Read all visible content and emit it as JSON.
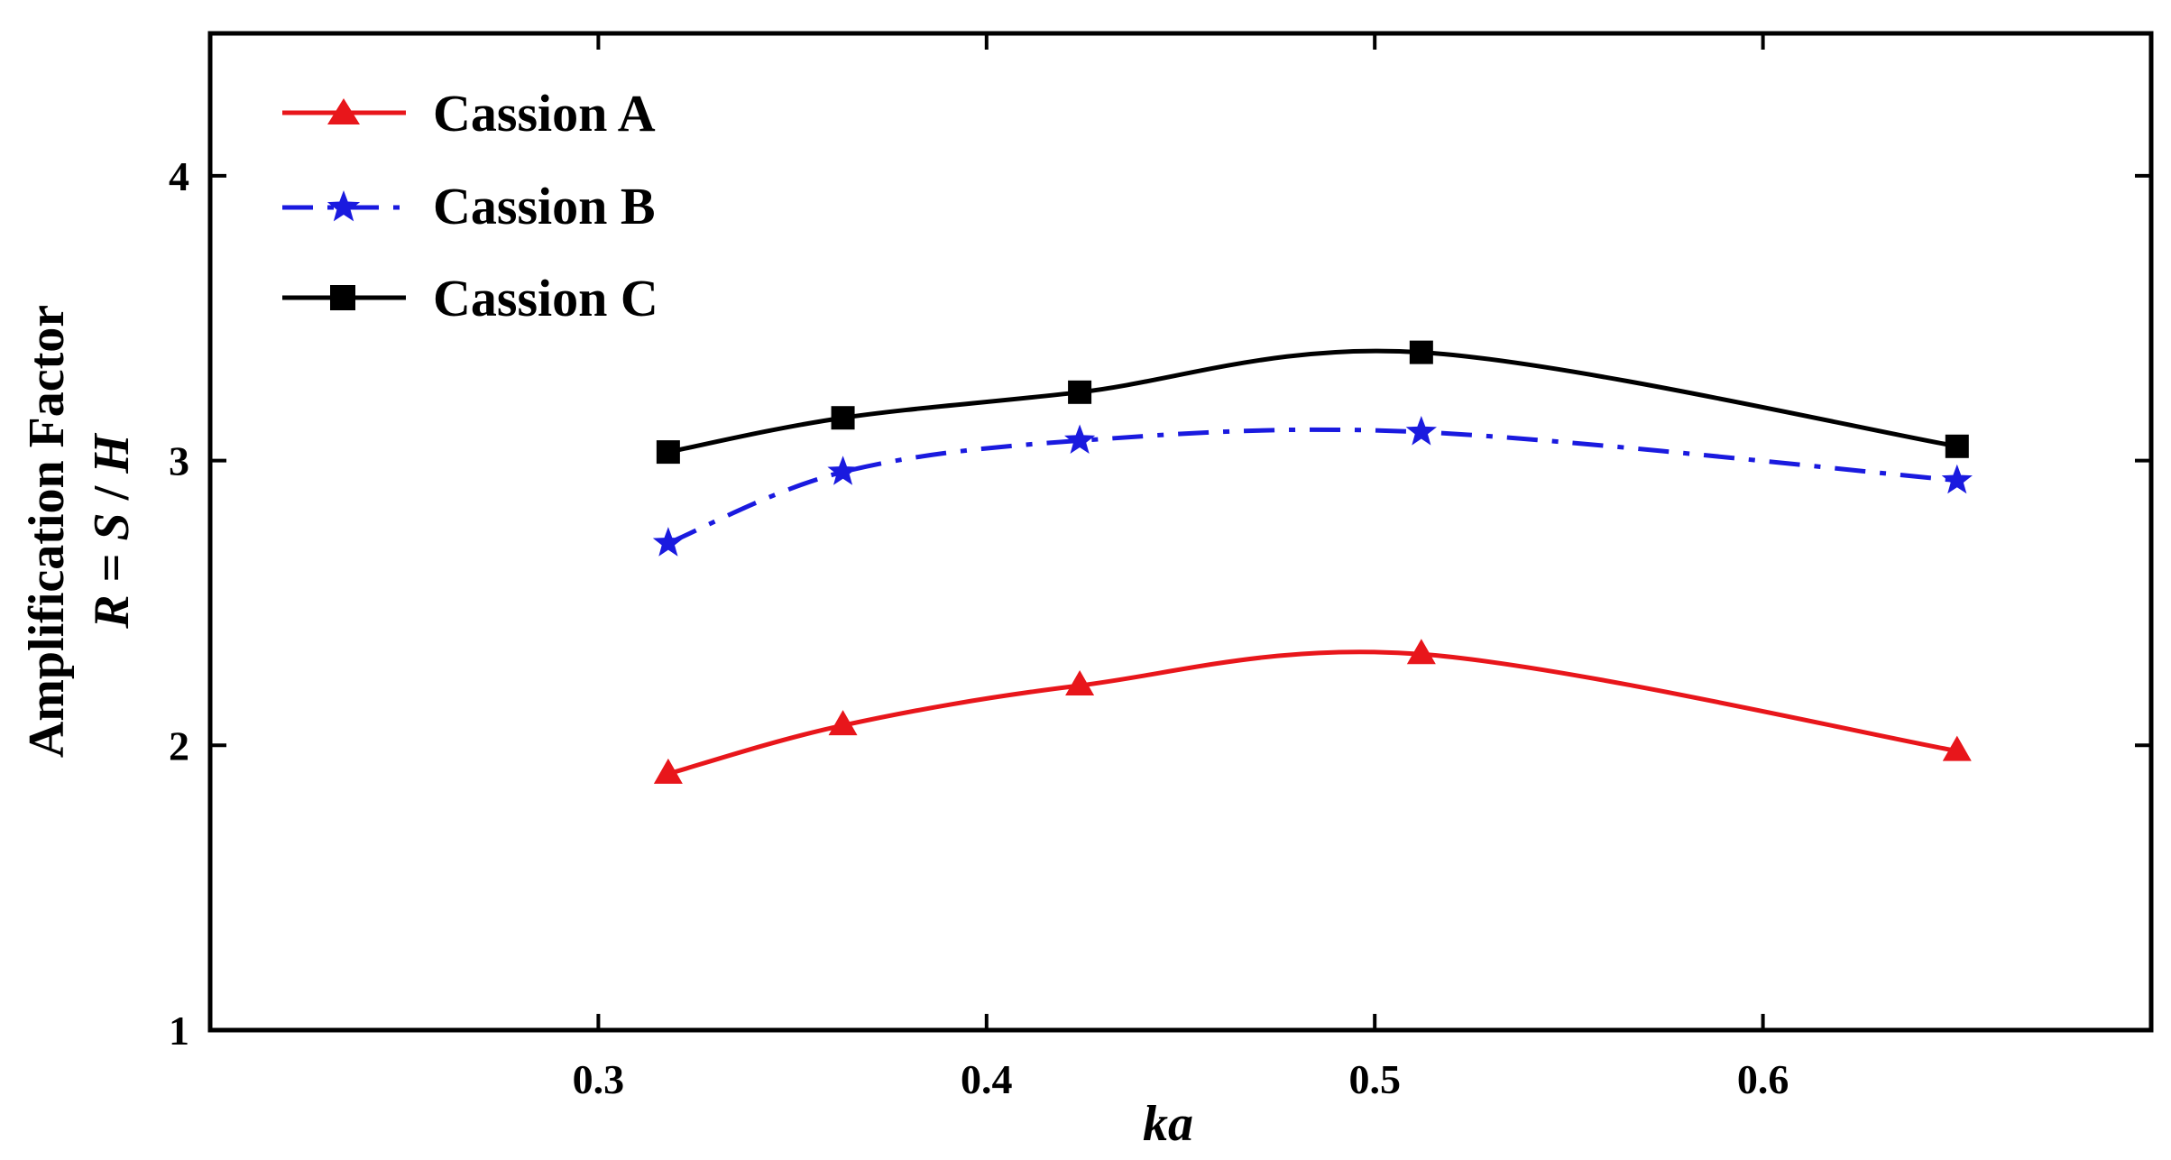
{
  "chart_data": {
    "type": "line",
    "title": "",
    "xlabel": "ka",
    "ylabel_line1": "Amplification Factor",
    "ylabel_line2": {
      "r": "R",
      "mid": " = ",
      "s": "S",
      "slash": " / ",
      "h": "H"
    },
    "xlim": [
      0.2,
      0.7
    ],
    "ylim": [
      1,
      4.5
    ],
    "xticks": [
      0.3,
      0.4,
      0.5,
      0.6
    ],
    "xtick_labels": [
      "0.3",
      "0.4",
      "0.5",
      "0.6"
    ],
    "yticks": [
      1,
      2,
      3,
      4
    ],
    "ytick_labels": [
      "1",
      "2",
      "3",
      "4"
    ],
    "legend_position": "top-left",
    "x": [
      0.318,
      0.363,
      0.424,
      0.512,
      0.65
    ],
    "series": [
      {
        "name": "Cassion A",
        "color": "#e8161b",
        "marker": "triangle",
        "dash": "solid",
        "values": [
          1.9,
          2.07,
          2.21,
          2.32,
          1.98
        ]
      },
      {
        "name": "Cassion B",
        "color": "#1a1adf",
        "marker": "star",
        "dash": "dashdot",
        "values": [
          2.71,
          2.96,
          3.07,
          3.1,
          2.93
        ]
      },
      {
        "name": "Cassion C",
        "color": "#000000",
        "marker": "square",
        "dash": "solid",
        "values": [
          3.03,
          3.15,
          3.24,
          3.38,
          3.05
        ]
      }
    ]
  }
}
